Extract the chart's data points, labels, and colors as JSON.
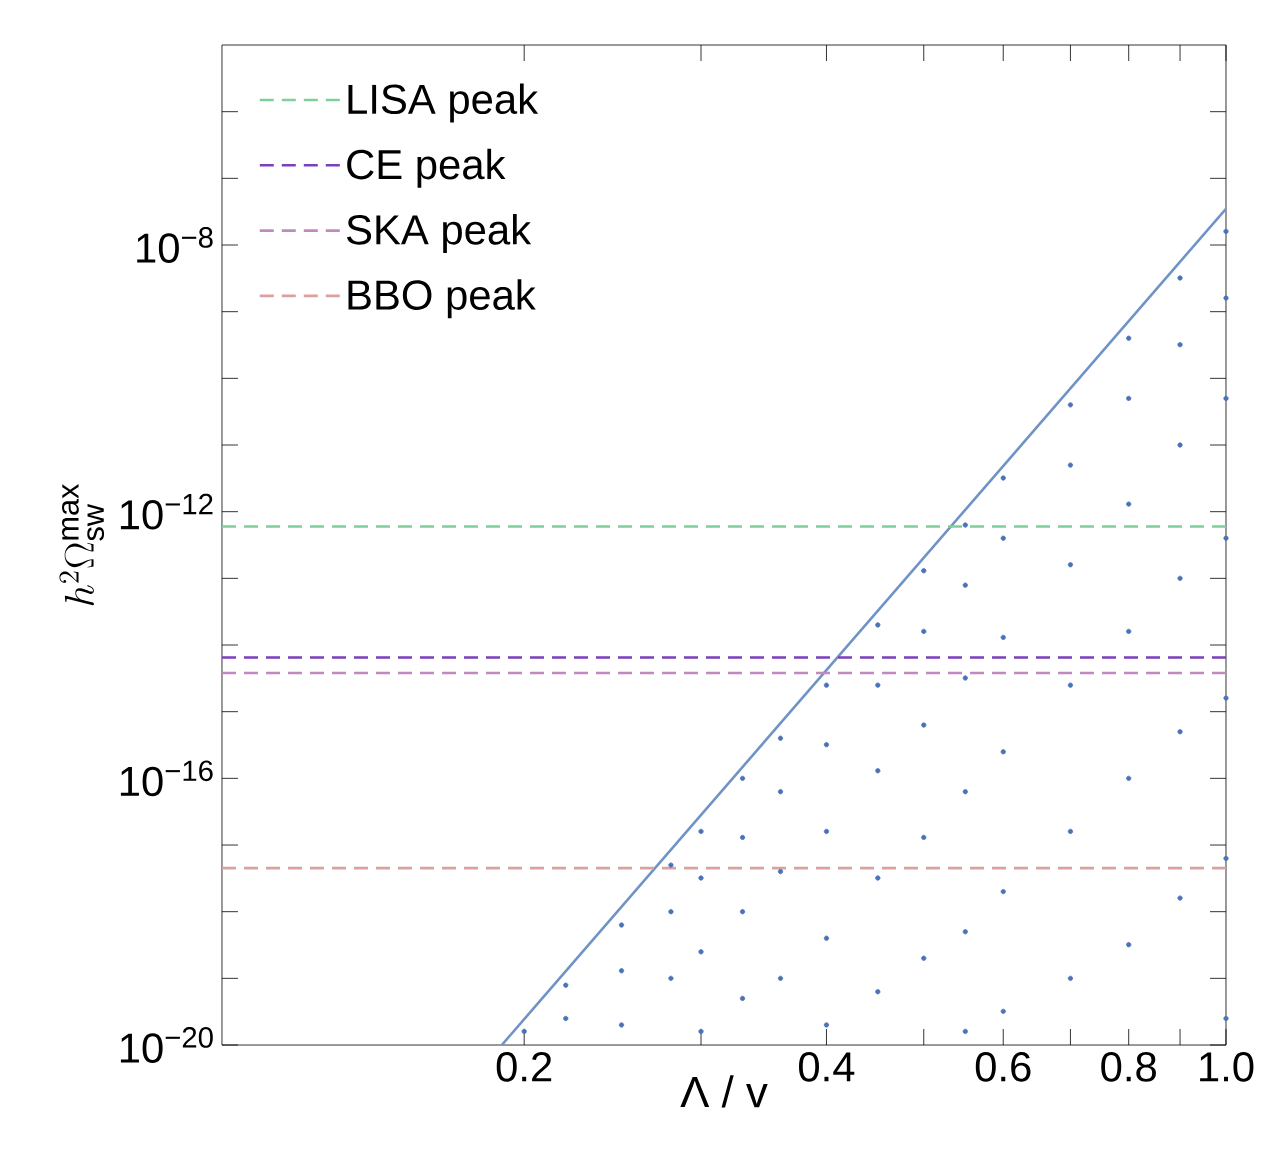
{
  "chart_data": {
    "type": "scatter",
    "xlabel": "Λ / v",
    "ylabel": "h^{2}\\Omega_{\\mathrm{sw}}^{\\mathrm{max}}",
    "log": "xy",
    "xlim": [
      0.1,
      1.0
    ],
    "ylim": [
      1e-20,
      1e-05
    ],
    "xticks": [
      {
        "value": 0.2,
        "label": "0.2"
      },
      {
        "value": 0.3,
        "label": null
      },
      {
        "value": 0.4,
        "label": "0.4"
      },
      {
        "value": 0.5,
        "label": null
      },
      {
        "value": 0.6,
        "label": "0.6"
      },
      {
        "value": 0.7,
        "label": null
      },
      {
        "value": 0.8,
        "label": "0.8"
      },
      {
        "value": 0.9,
        "label": null
      },
      {
        "value": 1.0,
        "label": "1.0"
      }
    ],
    "yticks": [
      {
        "value": 1e-20,
        "label": "10$^{−20}$"
      },
      {
        "value": 1e-19,
        "label": null
      },
      {
        "value": 1e-18,
        "label": null
      },
      {
        "value": 1e-17,
        "label": null
      },
      {
        "value": 1e-16,
        "label": "10$^{−16}$"
      },
      {
        "value": 1e-15,
        "label": null
      },
      {
        "value": 1e-14,
        "label": null
      },
      {
        "value": 1e-13,
        "label": null
      },
      {
        "value": 1e-12,
        "label": "10$^{−12}$"
      },
      {
        "value": 1e-11,
        "label": null
      },
      {
        "value": 1e-10,
        "label": null
      },
      {
        "value": 1e-09,
        "label": null
      },
      {
        "value": 1e-08,
        "label": "10$^{−8}$"
      },
      {
        "value": 1e-07,
        "label": null
      },
      {
        "value": 1e-06,
        "label": null
      }
    ],
    "grid": false,
    "legend": "top left",
    "series": [
      {
        "marker": "circle",
        "color": "#4a72b8",
        "x": [
          0.2,
          0.22,
          0.22,
          0.25,
          0.25,
          0.25,
          0.28,
          0.28,
          0.28,
          0.3,
          0.3,
          0.3,
          0.3,
          0.33,
          0.33,
          0.33,
          0.33,
          0.36,
          0.36,
          0.36,
          0.36,
          0.4,
          0.4,
          0.4,
          0.4,
          0.4,
          0.45,
          0.45,
          0.45,
          0.45,
          0.45,
          0.5,
          0.5,
          0.5,
          0.5,
          0.5,
          0.55,
          0.55,
          0.55,
          0.55,
          0.55,
          0.55,
          0.6,
          0.6,
          0.6,
          0.6,
          0.6,
          0.6,
          0.7,
          0.7,
          0.7,
          0.7,
          0.7,
          0.7,
          0.8,
          0.8,
          0.8,
          0.8,
          0.8,
          0.8,
          0.9,
          0.9,
          0.9,
          0.9,
          0.9,
          0.9,
          1.0,
          1.0,
          1.0,
          1.0,
          1.0,
          1.0,
          1.0
        ],
        "values": [
          1.6e-20,
          7.9e-20,
          2.5e-20,
          6.3e-19,
          1.3e-19,
          2e-20,
          5e-18,
          1e-18,
          1e-19,
          1.6e-17,
          3.2e-18,
          2.5e-19,
          1.6e-20,
          1e-16,
          1.3e-17,
          1e-18,
          5e-20,
          4e-16,
          6.3e-17,
          4e-18,
          1e-19,
          2.5e-15,
          3.2e-16,
          1.6e-17,
          4e-19,
          2e-20,
          2e-14,
          2.5e-15,
          1.3e-16,
          3.2e-18,
          6.3e-20,
          1.3e-13,
          1.6e-14,
          6.3e-16,
          1.3e-17,
          2e-19,
          6.3e-13,
          7.9e-14,
          3.2e-15,
          6.3e-17,
          5e-19,
          1.6e-20,
          3.2e-12,
          4e-13,
          1.3e-14,
          2.5e-16,
          2e-18,
          3.2e-20,
          4e-11,
          5e-12,
          1.6e-13,
          2.5e-15,
          1.6e-17,
          1e-19,
          4e-10,
          5e-11,
          1.3e-12,
          1.6e-14,
          1e-16,
          3.2e-19,
          3.2e-09,
          3.2e-10,
          1e-11,
          1e-13,
          5e-16,
          1.6e-18,
          1.6e-08,
          1.6e-09,
          5e-11,
          4e-13,
          1.6e-15,
          6.3e-18,
          2.5e-20
        ]
      },
      {
        "type": "line",
        "marker": "none",
        "line_style": "solid",
        "color": "#6f93c6",
        "x": [
          0.19,
          1.0
        ],
        "values": [
          1e-20,
          3.5e-08
        ]
      }
    ],
    "ref_lines": [
      {
        "axis": "y",
        "value": 6e-13,
        "label": "LISA peak",
        "color": "#7fcf9a",
        "line_style": "dashed"
      },
      {
        "axis": "y",
        "value": 6.5e-15,
        "label": "CE peak",
        "color": "#7b3fbf",
        "line_style": "dashed"
      },
      {
        "axis": "y",
        "value": 3.8e-15,
        "label": "SKA peak",
        "color": "#c08ac0",
        "line_style": "dashed"
      },
      {
        "axis": "y",
        "value": 4.5e-18,
        "label": "BBO peak",
        "color": "#dba0a0",
        "line_style": "dashed"
      }
    ]
  }
}
